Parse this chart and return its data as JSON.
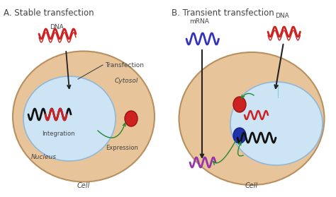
{
  "title_a": "A. Stable transfection",
  "title_b": "B. Transient transfection",
  "label_cell": "Cell",
  "label_nucleus": "Nucleus",
  "label_cytosol": "Cytosol",
  "label_integration": "Integration",
  "label_expression": "Expression",
  "label_dna_a": "DNA",
  "label_dna_b": "DNA",
  "label_mrna_b": "mRNA",
  "label_transfection": "Transfection",
  "bg_color": "#ffffff",
  "cell_fill": "#e8c49a",
  "cell_edge": "#b89060",
  "nucleus_fill": "#cde4f5",
  "nucleus_edge": "#90b8d8",
  "dna_color_red": "#cc2222",
  "dna_color_black": "#111111",
  "dna_color_blue": "#3333bb",
  "dna_color_purple": "#9933aa",
  "arrow_color": "#222222",
  "green_arrow_color": "#228833",
  "protein_red_color": "#cc2222",
  "protein_blue_color": "#2233aa",
  "text_color": "#444444",
  "title_fontsize": 8.5,
  "label_fontsize": 6.5
}
